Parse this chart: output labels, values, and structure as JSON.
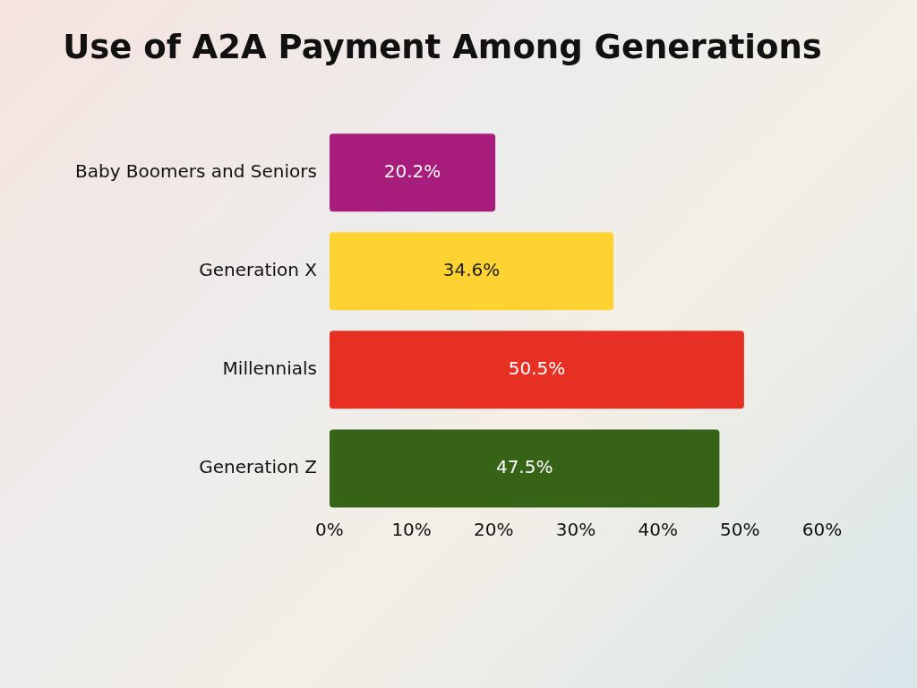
{
  "chart_data": {
    "type": "bar",
    "orientation": "horizontal",
    "title": "Use of A2A Payment Among Generations",
    "categories": [
      "Baby Boomers and Seniors",
      "Generation X",
      "Millennials",
      "Generation Z"
    ],
    "values": [
      20.2,
      34.6,
      50.5,
      47.5
    ],
    "value_labels": [
      "20.2%",
      "34.6%",
      "50.5%",
      "47.5%"
    ],
    "colors": [
      "#a81c7c",
      "#fdd231",
      "#e63024",
      "#366315"
    ],
    "xlim": [
      0,
      60
    ],
    "xticks": [
      {
        "value": 0,
        "label": "0%"
      },
      {
        "value": 10,
        "label": "10%"
      },
      {
        "value": 20,
        "label": "20%"
      },
      {
        "value": 30,
        "label": "30%"
      },
      {
        "value": 40,
        "label": "40%"
      },
      {
        "value": 50,
        "label": "50%"
      },
      {
        "value": 60,
        "label": "60%"
      }
    ],
    "grid": false,
    "legend": false
  }
}
